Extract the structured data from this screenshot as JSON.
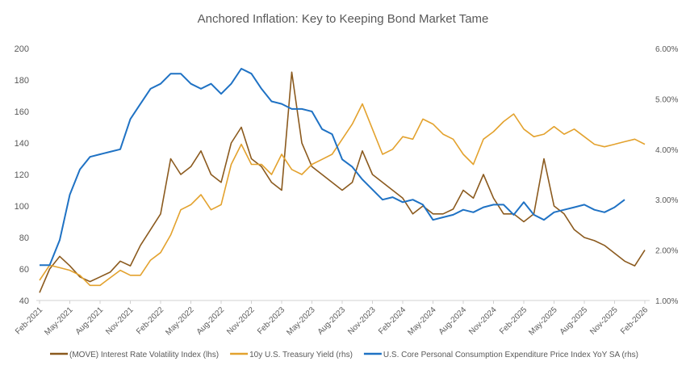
{
  "chart_data": {
    "type": "line",
    "title": "Anchored Inflation: Key to Keeping Bond Market Tame",
    "x_ticks": [
      "Feb-2021",
      "May-2021",
      "Aug-2021",
      "Nov-2021",
      "Feb-2022",
      "May-2022",
      "Aug-2022",
      "Nov-2022",
      "Feb-2023",
      "May-2023",
      "Aug-2023",
      "Nov-2023",
      "Feb-2024",
      "May-2024",
      "Aug-2024",
      "Nov-2024",
      "Feb-2025",
      "May-2025",
      "Aug-2025",
      "Nov-2025",
      "Feb-2026"
    ],
    "y_left": {
      "ticks": [
        "40",
        "60",
        "80",
        "100",
        "120",
        "140",
        "160",
        "180",
        "200"
      ],
      "range": [
        40,
        200
      ]
    },
    "y_right": {
      "ticks": [
        "1.00%",
        "2.00%",
        "3.00%",
        "4.00%",
        "5.00%",
        "6.00%"
      ],
      "range": [
        1,
        6
      ]
    },
    "x_start": "Feb-2021",
    "grid": false,
    "legend_position": "bottom",
    "series": [
      {
        "name": "(MOVE) Interest Rate Volatility Index (lhs)",
        "axis": "left",
        "color": "#8B5A1E",
        "values": [
          45,
          60,
          68,
          62,
          55,
          52,
          55,
          58,
          65,
          62,
          75,
          85,
          95,
          130,
          120,
          125,
          135,
          120,
          115,
          140,
          150,
          130,
          125,
          115,
          110,
          185,
          140,
          125,
          120,
          115,
          110,
          115,
          135,
          120,
          115,
          110,
          105,
          95,
          100,
          95,
          95,
          98,
          110,
          105,
          120,
          105,
          95,
          95,
          90,
          95,
          130,
          100,
          95,
          85,
          80,
          78,
          75,
          70,
          65,
          62,
          72
        ]
      },
      {
        "name": "10y U.S. Treasury Yield (rhs)",
        "axis": "right",
        "color": "#E3A22E",
        "values": [
          1.4,
          1.7,
          1.65,
          1.6,
          1.5,
          1.3,
          1.3,
          1.45,
          1.6,
          1.5,
          1.5,
          1.8,
          1.95,
          2.3,
          2.8,
          2.9,
          3.1,
          2.8,
          2.9,
          3.7,
          4.1,
          3.7,
          3.7,
          3.5,
          3.9,
          3.6,
          3.5,
          3.7,
          3.8,
          3.9,
          4.2,
          4.5,
          4.9,
          4.4,
          3.9,
          4.0,
          4.25,
          4.2,
          4.6,
          4.5,
          4.3,
          4.2,
          3.9,
          3.7,
          4.2,
          4.35,
          4.55,
          4.7,
          4.4,
          4.25,
          4.3,
          4.45,
          4.3,
          4.4,
          4.25,
          4.1,
          4.05,
          4.1,
          4.15,
          4.2,
          4.1
        ]
      },
      {
        "name": "U.S. Core Personal Consumption Expenditure Price Index YoY SA  (rhs)",
        "axis": "right",
        "color": "#1F72C4",
        "values": [
          1.7,
          1.7,
          2.2,
          3.1,
          3.6,
          3.85,
          3.9,
          3.95,
          4.0,
          4.6,
          4.9,
          5.2,
          5.3,
          5.5,
          5.5,
          5.3,
          5.2,
          5.3,
          5.1,
          5.3,
          5.6,
          5.5,
          5.2,
          4.95,
          4.9,
          4.8,
          4.8,
          4.75,
          4.4,
          4.3,
          3.8,
          3.65,
          3.4,
          3.2,
          3.0,
          3.05,
          2.95,
          3.0,
          2.9,
          2.6,
          2.65,
          2.7,
          2.8,
          2.75,
          2.85,
          2.9,
          2.9,
          2.7,
          2.95,
          2.7,
          2.6,
          2.75,
          2.8,
          2.85,
          2.9,
          2.8,
          2.75,
          2.85,
          3.0
        ]
      }
    ]
  }
}
